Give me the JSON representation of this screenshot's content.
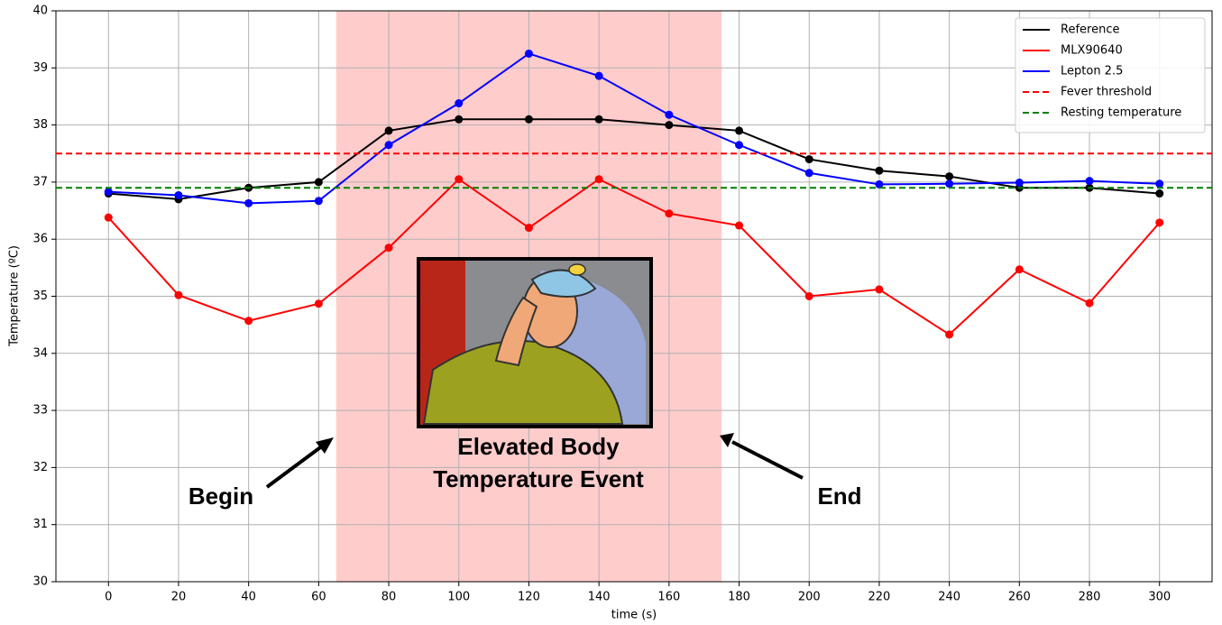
{
  "chart_data": {
    "type": "line",
    "x_label": "time (s)",
    "y_label": "Temperature (ºC)",
    "x": [
      0,
      20,
      40,
      60,
      80,
      100,
      120,
      140,
      160,
      180,
      200,
      220,
      240,
      260,
      280,
      300
    ],
    "series": [
      {
        "name": "Reference",
        "color": "#000000",
        "values": [
          36.8,
          36.7,
          36.9,
          37.0,
          37.9,
          38.1,
          38.1,
          38.1,
          38.0,
          37.9,
          37.4,
          37.2,
          37.1,
          36.9,
          36.9,
          36.8
        ]
      },
      {
        "name": "MLX90640",
        "color": "#ff0000",
        "values": [
          36.38,
          35.02,
          34.57,
          34.87,
          35.85,
          37.05,
          36.2,
          37.05,
          36.45,
          36.24,
          35.0,
          35.12,
          34.33,
          35.47,
          34.88,
          36.29
        ]
      },
      {
        "name": "Lepton 2.5",
        "color": "#0000ff",
        "values": [
          36.83,
          36.77,
          36.63,
          36.67,
          37.65,
          38.38,
          39.25,
          38.86,
          38.18,
          37.65,
          37.16,
          36.96,
          36.97,
          36.99,
          37.02,
          36.97
        ]
      }
    ],
    "hlines": [
      {
        "name": "Fever threshold",
        "color": "#ff0000",
        "value": 37.5,
        "style": "dashed"
      },
      {
        "name": "Resting temperature",
        "color": "#008000",
        "value": 36.9,
        "style": "dashed"
      }
    ],
    "span": {
      "start": 65,
      "end": 175,
      "color": "#ffcccc"
    },
    "annotations": {
      "begin": "Begin",
      "end": "End",
      "event": [
        "Elevated  Body",
        "Temperature Event"
      ]
    },
    "xlim": [
      -15,
      315
    ],
    "ylim": [
      30,
      40
    ],
    "xticks": [
      0,
      20,
      40,
      60,
      80,
      100,
      120,
      140,
      160,
      180,
      200,
      220,
      240,
      260,
      280,
      300
    ],
    "yticks": [
      30,
      31,
      32,
      33,
      34,
      35,
      36,
      37,
      38,
      39,
      40
    ],
    "grid": true,
    "legend": "upper right",
    "markers": true
  }
}
